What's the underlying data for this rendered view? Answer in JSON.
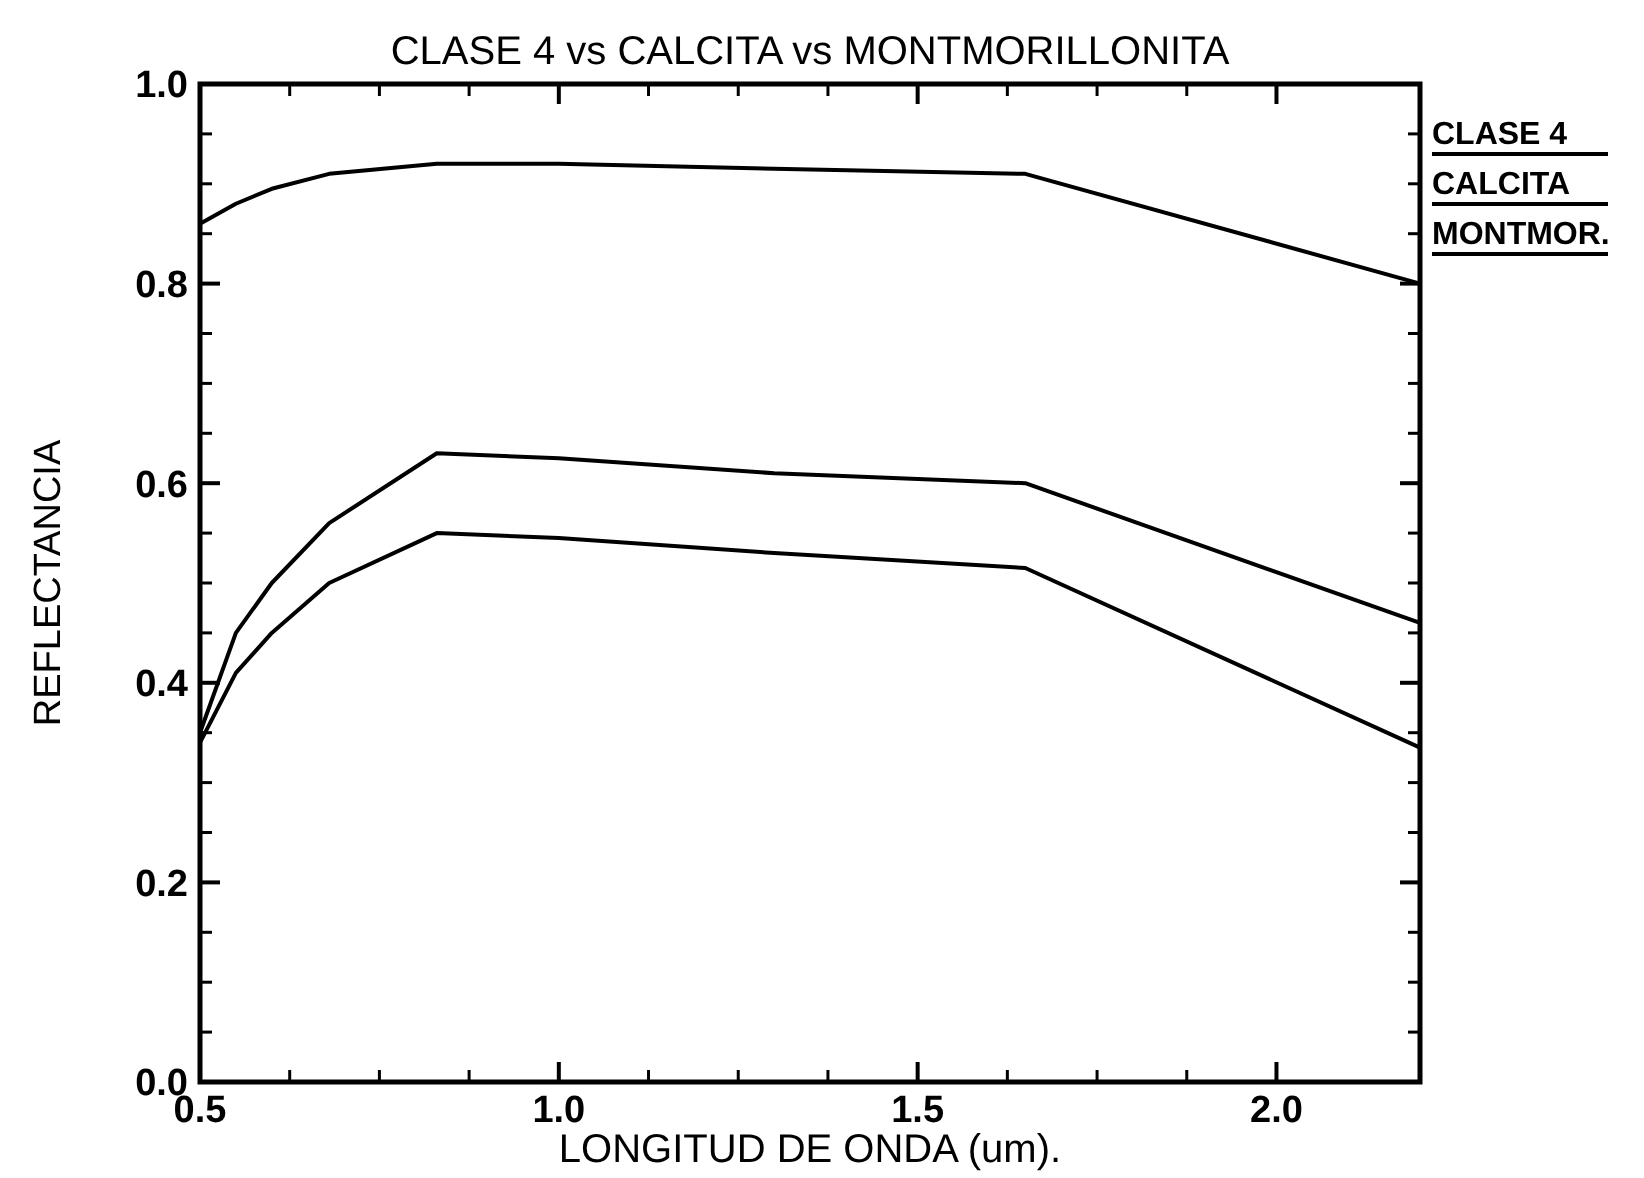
{
  "chart_data": {
    "type": "line",
    "title": "CLASE 4 vs CALCITA vs MONTMORILLONITA",
    "xlabel": "LONGITUD DE ONDA (um).",
    "ylabel": "REFLECTANCIA",
    "x": [
      0.5,
      0.55,
      0.6,
      0.68,
      0.83,
      1.0,
      1.3,
      1.65,
      2.2
    ],
    "series": [
      {
        "name": "CLASE 4",
        "color": "#000000",
        "values": [
          0.35,
          0.45,
          0.5,
          0.56,
          0.63,
          0.625,
          0.61,
          0.6,
          0.46
        ]
      },
      {
        "name": "CALCITA",
        "color": "#000000",
        "values": [
          0.86,
          0.88,
          0.895,
          0.91,
          0.92,
          0.92,
          0.915,
          0.91,
          0.8
        ]
      },
      {
        "name": "MONTMOR.",
        "color": "#000000",
        "values": [
          0.34,
          0.41,
          0.45,
          0.5,
          0.55,
          0.545,
          0.53,
          0.515,
          0.335
        ]
      }
    ],
    "xlim": [
      0.5,
      2.2
    ],
    "xticks": [
      0.5,
      {
        "value": 1,
        "label": "1.0"
      },
      1.5,
      {
        "value": 2,
        "label": "2.0"
      }
    ],
    "ylim": [
      0,
      1
    ],
    "yticks": [
      {
        "value": 0,
        "label": "0.0"
      },
      0.2,
      0.4,
      0.6,
      0.8,
      {
        "value": 1,
        "label": "1.0"
      }
    ],
    "grid": false,
    "legend": "top right",
    "marker": "none",
    "line_style": "solid"
  }
}
